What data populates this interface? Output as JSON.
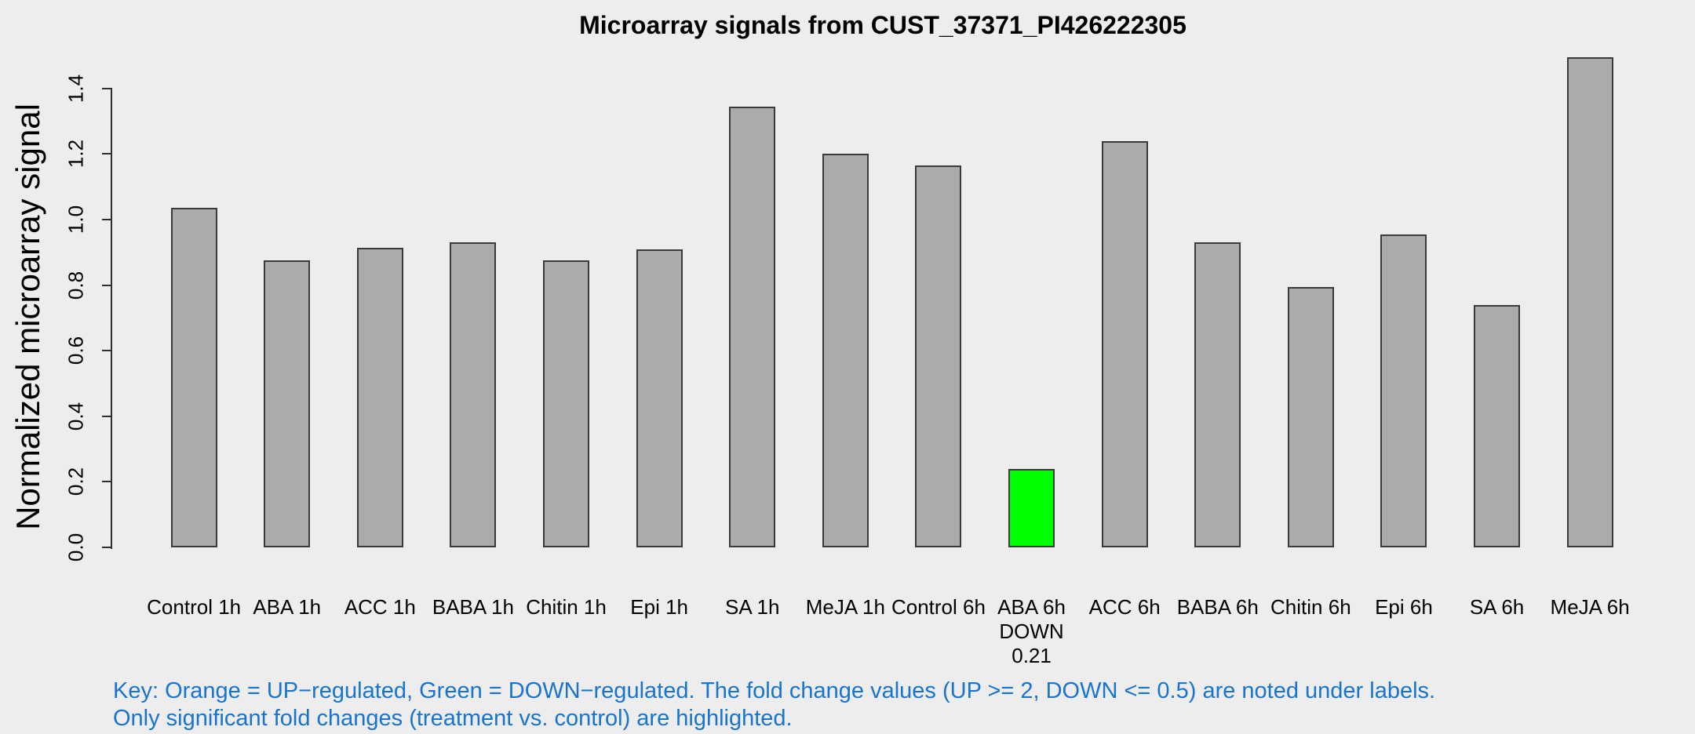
{
  "chart_data": {
    "type": "bar",
    "title": "Microarray signals from CUST_37371_PI426222305",
    "xlabel": "",
    "ylabel": "Normalized microarray signal",
    "ylim": [
      0,
      1.4
    ],
    "ytick_labels": [
      "0.0",
      "0.2",
      "0.4",
      "0.6",
      "0.8",
      "1.0",
      "1.2",
      "1.4"
    ],
    "grid": false,
    "legend": "none",
    "categories": [
      "Control 1h",
      "ABA 1h",
      "ACC 1h",
      "BABA 1h",
      "Chitin 1h",
      "Epi 1h",
      "SA 1h",
      "MeJA 1h",
      "Control 6h",
      "ABA 6h",
      "ACC 6h",
      "BABA 6h",
      "Chitin 6h",
      "Epi 6h",
      "SA 6h",
      "MeJA 6h"
    ],
    "values": [
      1.035,
      0.875,
      0.915,
      0.93,
      0.875,
      0.91,
      1.345,
      1.2,
      1.165,
      0.24,
      1.24,
      0.93,
      0.795,
      0.955,
      0.74,
      1.495
    ],
    "bars": [
      {
        "label": "Control 1h",
        "value": 1.035,
        "highlight": "none",
        "sublabels": []
      },
      {
        "label": "ABA 1h",
        "value": 0.875,
        "highlight": "none",
        "sublabels": []
      },
      {
        "label": "ACC 1h",
        "value": 0.915,
        "highlight": "none",
        "sublabels": []
      },
      {
        "label": "BABA 1h",
        "value": 0.93,
        "highlight": "none",
        "sublabels": []
      },
      {
        "label": "Chitin 1h",
        "value": 0.875,
        "highlight": "none",
        "sublabels": []
      },
      {
        "label": "Epi 1h",
        "value": 0.91,
        "highlight": "none",
        "sublabels": []
      },
      {
        "label": "SA 1h",
        "value": 1.345,
        "highlight": "none",
        "sublabels": []
      },
      {
        "label": "MeJA 1h",
        "value": 1.2,
        "highlight": "none",
        "sublabels": []
      },
      {
        "label": "Control 6h",
        "value": 1.165,
        "highlight": "none",
        "sublabels": []
      },
      {
        "label": "ABA 6h",
        "value": 0.24,
        "highlight": "down",
        "sublabels": [
          "DOWN",
          "0.21"
        ]
      },
      {
        "label": "ACC 6h",
        "value": 1.24,
        "highlight": "none",
        "sublabels": []
      },
      {
        "label": "BABA 6h",
        "value": 0.93,
        "highlight": "none",
        "sublabels": []
      },
      {
        "label": "Chitin 6h",
        "value": 0.795,
        "highlight": "none",
        "sublabels": []
      },
      {
        "label": "Epi 6h",
        "value": 0.955,
        "highlight": "none",
        "sublabels": []
      },
      {
        "label": "SA 6h",
        "value": 0.74,
        "highlight": "none",
        "sublabels": []
      },
      {
        "label": "MeJA 6h",
        "value": 1.495,
        "highlight": "none",
        "sublabels": []
      }
    ],
    "highlighted_bar": {
      "label": "ABA 6h",
      "direction": "DOWN",
      "fold_change": "0.21"
    }
  },
  "key": {
    "line1": "Key: Orange = UP−regulated, Green = DOWN−regulated. The fold change values (UP >= 2, DOWN <= 0.5) are noted under labels.",
    "line2": "Only significant fold changes (treatment vs. control) are highlighted."
  },
  "colors": {
    "background": "#EDEDED",
    "bar_fill": "#ABABAB",
    "bar_border": "#3A3A3A",
    "down_highlight": "#00FF00",
    "up_highlight": "#FFA500",
    "axis": "#2E2E2E",
    "key_text": "#1874CD",
    "text": "#000000"
  }
}
